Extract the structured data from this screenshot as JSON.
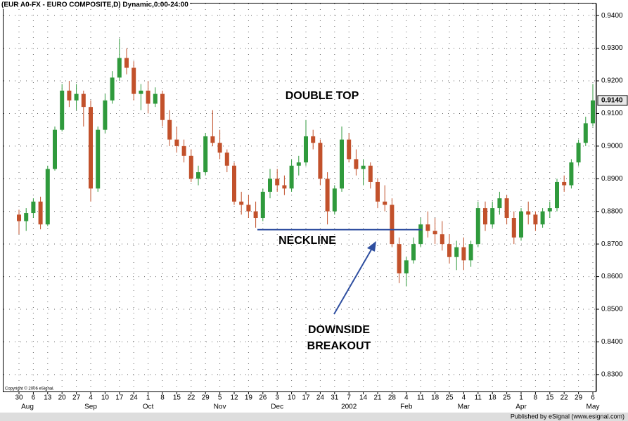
{
  "chart_data": {
    "type": "candlestick",
    "header": "(EUR A0-FX - EURO COMPOSITE,D) Dynamic,0:00-24:00",
    "copyright": "Copyright © 2006 eSignal.",
    "footer": "Published by eSignal (www.esignal.com)",
    "up_color": "#2f9a3c",
    "down_color": "#c2512b",
    "grid": true,
    "ylim": [
      0.8248,
      0.9437
    ],
    "yticks": [
      {
        "value": 0.83,
        "label": "0.8300"
      },
      {
        "value": 0.84,
        "label": "0.8400"
      },
      {
        "value": 0.85,
        "label": "0.8500"
      },
      {
        "value": 0.86,
        "label": "0.8600"
      },
      {
        "value": 0.87,
        "label": "0.8700"
      },
      {
        "value": 0.88,
        "label": "0.8800"
      },
      {
        "value": 0.89,
        "label": "0.8900"
      },
      {
        "value": 0.9,
        "label": "0.9000"
      },
      {
        "value": 0.91,
        "label": "0.9100"
      },
      {
        "value": 0.92,
        "label": "0.9200"
      },
      {
        "value": 0.93,
        "label": "0.9300"
      },
      {
        "value": 0.94,
        "label": "0.9400"
      }
    ],
    "last_price": {
      "value": 0.914,
      "label": "0.9140"
    },
    "categories": [
      "30",
      null,
      "6",
      null,
      "13",
      null,
      "20",
      null,
      "27",
      null,
      "4",
      null,
      "10",
      null,
      "17",
      null,
      "24",
      null,
      "1",
      null,
      "8",
      null,
      "15",
      null,
      "22",
      null,
      "29",
      null,
      "5",
      null,
      "12",
      null,
      "19",
      null,
      "26",
      null,
      "3",
      null,
      "10",
      null,
      "17",
      null,
      "24",
      null,
      "31",
      null,
      "7",
      null,
      "14",
      null,
      "21",
      null,
      "28",
      null,
      "4",
      null,
      "11",
      null,
      "18",
      null,
      "25",
      null,
      "4",
      null,
      "11",
      null,
      "18",
      null,
      "25",
      null,
      "1",
      null,
      "8",
      null,
      "15",
      null,
      "22",
      null,
      "29",
      null,
      "6"
    ],
    "months": [
      "Aug",
      null,
      null,
      null,
      null,
      null,
      null,
      null,
      null,
      null,
      "Sep",
      null,
      null,
      null,
      null,
      null,
      null,
      null,
      "Oct",
      null,
      null,
      null,
      null,
      null,
      null,
      null,
      null,
      null,
      "Nov",
      null,
      null,
      null,
      null,
      null,
      null,
      null,
      "Dec",
      null,
      null,
      null,
      null,
      null,
      null,
      null,
      null,
      null,
      "2002",
      null,
      null,
      null,
      null,
      null,
      null,
      null,
      "Feb",
      null,
      null,
      null,
      null,
      null,
      null,
      null,
      "Mar",
      null,
      null,
      null,
      null,
      null,
      null,
      null,
      "Apr",
      null,
      null,
      null,
      null,
      null,
      null,
      null,
      null,
      null,
      "May"
    ],
    "candles": [
      [
        0.879,
        0.8805,
        0.873,
        0.877
      ],
      [
        0.877,
        0.881,
        0.874,
        0.8795
      ],
      [
        0.8795,
        0.884,
        0.878,
        0.883
      ],
      [
        0.883,
        0.8845,
        0.8745,
        0.876
      ],
      [
        0.876,
        0.894,
        0.8755,
        0.893
      ],
      [
        0.893,
        0.906,
        0.8925,
        0.905
      ],
      [
        0.905,
        0.919,
        0.9045,
        0.917
      ],
      [
        0.917,
        0.92,
        0.912,
        0.914
      ],
      [
        0.914,
        0.919,
        0.911,
        0.916
      ],
      [
        0.916,
        0.917,
        0.906,
        0.912
      ],
      [
        0.912,
        0.914,
        0.883,
        0.887
      ],
      [
        0.887,
        0.906,
        0.886,
        0.905
      ],
      [
        0.905,
        0.916,
        0.904,
        0.914
      ],
      [
        0.914,
        0.923,
        0.913,
        0.921
      ],
      [
        0.921,
        0.933,
        0.92,
        0.927
      ],
      [
        0.927,
        0.93,
        0.922,
        0.924
      ],
      [
        0.924,
        0.926,
        0.914,
        0.916
      ],
      [
        0.916,
        0.919,
        0.911,
        0.917
      ],
      [
        0.917,
        0.92,
        0.91,
        0.913
      ],
      [
        0.913,
        0.918,
        0.912,
        0.916
      ],
      [
        0.916,
        0.917,
        0.906,
        0.908
      ],
      [
        0.908,
        0.911,
        0.9,
        0.902
      ],
      [
        0.902,
        0.906,
        0.898,
        0.9
      ],
      [
        0.9,
        0.902,
        0.895,
        0.897
      ],
      [
        0.897,
        0.899,
        0.889,
        0.89
      ],
      [
        0.89,
        0.894,
        0.888,
        0.892
      ],
      [
        0.892,
        0.904,
        0.891,
        0.903
      ],
      [
        0.903,
        0.911,
        0.9,
        0.901
      ],
      [
        0.901,
        0.905,
        0.896,
        0.898
      ],
      [
        0.898,
        0.899,
        0.892,
        0.894
      ],
      [
        0.894,
        0.895,
        0.882,
        0.883
      ],
      [
        0.883,
        0.886,
        0.879,
        0.882
      ],
      [
        0.882,
        0.885,
        0.878,
        0.88
      ],
      [
        0.88,
        0.883,
        0.875,
        0.878
      ],
      [
        0.878,
        0.887,
        0.877,
        0.886
      ],
      [
        0.886,
        0.893,
        0.884,
        0.89
      ],
      [
        0.89,
        0.893,
        0.886,
        0.888
      ],
      [
        0.888,
        0.891,
        0.885,
        0.887
      ],
      [
        0.887,
        0.896,
        0.886,
        0.894
      ],
      [
        0.894,
        0.897,
        0.891,
        0.895
      ],
      [
        0.895,
        0.908,
        0.894,
        0.903
      ],
      [
        0.903,
        0.905,
        0.899,
        0.901
      ],
      [
        0.901,
        0.902,
        0.888,
        0.89
      ],
      [
        0.89,
        0.892,
        0.876,
        0.88
      ],
      [
        0.88,
        0.888,
        0.879,
        0.887
      ],
      [
        0.887,
        0.906,
        0.886,
        0.902
      ],
      [
        0.902,
        0.904,
        0.895,
        0.896
      ],
      [
        0.896,
        0.899,
        0.891,
        0.893
      ],
      [
        0.893,
        0.896,
        0.888,
        0.894
      ],
      [
        0.894,
        0.895,
        0.887,
        0.889
      ],
      [
        0.889,
        0.89,
        0.881,
        0.883
      ],
      [
        0.883,
        0.888,
        0.88,
        0.882
      ],
      [
        0.882,
        0.884,
        0.869,
        0.87
      ],
      [
        0.87,
        0.872,
        0.858,
        0.861
      ],
      [
        0.861,
        0.866,
        0.857,
        0.865
      ],
      [
        0.865,
        0.872,
        0.864,
        0.87
      ],
      [
        0.87,
        0.878,
        0.869,
        0.876
      ],
      [
        0.876,
        0.88,
        0.872,
        0.874
      ],
      [
        0.874,
        0.878,
        0.87,
        0.873
      ],
      [
        0.873,
        0.877,
        0.868,
        0.87
      ],
      [
        0.87,
        0.873,
        0.864,
        0.866
      ],
      [
        0.866,
        0.871,
        0.862,
        0.869
      ],
      [
        0.869,
        0.872,
        0.862,
        0.865
      ],
      [
        0.865,
        0.871,
        0.863,
        0.87
      ],
      [
        0.87,
        0.883,
        0.869,
        0.881
      ],
      [
        0.881,
        0.883,
        0.874,
        0.876
      ],
      [
        0.876,
        0.883,
        0.875,
        0.881
      ],
      [
        0.881,
        0.886,
        0.879,
        0.884
      ],
      [
        0.884,
        0.885,
        0.876,
        0.878
      ],
      [
        0.878,
        0.88,
        0.87,
        0.872
      ],
      [
        0.872,
        0.881,
        0.871,
        0.88
      ],
      [
        0.88,
        0.883,
        0.876,
        0.879
      ],
      [
        0.879,
        0.88,
        0.874,
        0.876
      ],
      [
        0.876,
        0.881,
        0.875,
        0.88
      ],
      [
        0.88,
        0.883,
        0.878,
        0.881
      ],
      [
        0.881,
        0.89,
        0.88,
        0.889
      ],
      [
        0.889,
        0.891,
        0.886,
        0.888
      ],
      [
        0.888,
        0.896,
        0.887,
        0.895
      ],
      [
        0.895,
        0.902,
        0.894,
        0.901
      ],
      [
        0.901,
        0.909,
        0.9,
        0.907
      ],
      [
        0.907,
        0.919,
        0.906,
        0.914
      ]
    ],
    "annotations": {
      "double_top": "DOUBLE TOP",
      "neckline": "NECKLINE",
      "breakout": [
        "DOWNSIDE",
        "BREAKOUT"
      ]
    },
    "neckline_value": 0.8744
  }
}
